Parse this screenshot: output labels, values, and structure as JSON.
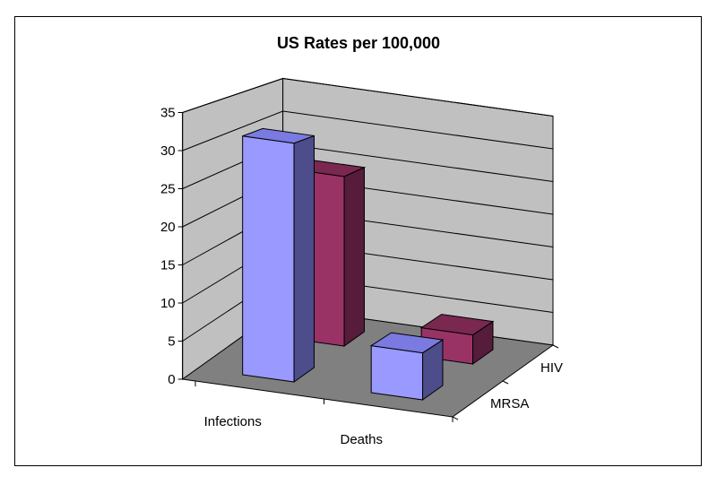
{
  "chart_data": {
    "type": "bar",
    "subtype": "3d-clustered-column",
    "title": "US Rates per 100,000",
    "categories": [
      "Infections",
      "Deaths"
    ],
    "series": [
      {
        "name": "MRSA",
        "values": [
          32,
          6.3
        ],
        "colors": {
          "front": "#9999FF",
          "top": "#7A7AE0",
          "side": "#4D4D8C"
        }
      },
      {
        "name": "HIV",
        "values": [
          24.5,
          4.2
        ],
        "colors": {
          "front": "#993366",
          "top": "#7A2850",
          "side": "#561C3A"
        }
      }
    ],
    "yticks": [
      "0",
      "5",
      "10",
      "15",
      "20",
      "25",
      "30",
      "35"
    ],
    "ylim": [
      0,
      35
    ],
    "xlabel": "",
    "ylabel": "",
    "grid": true,
    "wall_color": "#C0C0C0",
    "floor_color": "#808080"
  }
}
